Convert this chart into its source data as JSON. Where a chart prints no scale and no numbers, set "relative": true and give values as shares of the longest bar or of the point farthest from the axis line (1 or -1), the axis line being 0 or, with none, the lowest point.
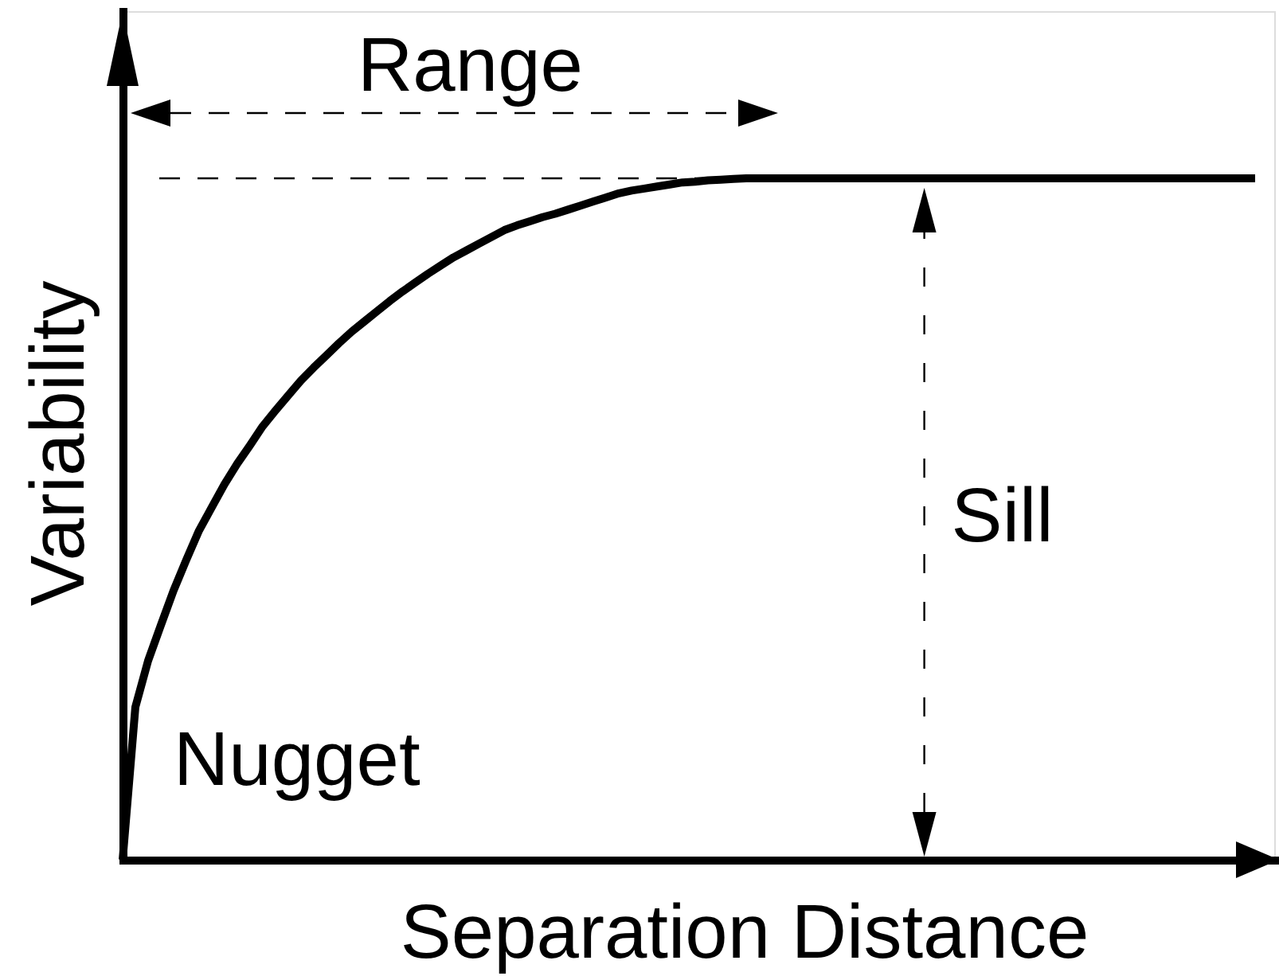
{
  "chart_data": {
    "type": "line",
    "xlabel": "Separation Distance",
    "ylabel": "Variability",
    "categories": [
      null,
      null,
      null,
      null,
      null,
      null,
      null,
      null,
      null,
      null,
      null,
      null,
      null,
      null,
      null,
      null,
      null,
      null,
      null,
      null,
      null,
      null,
      null,
      null,
      null,
      null,
      null,
      null,
      null,
      null,
      null,
      null,
      null,
      null,
      null,
      null,
      null,
      null,
      null,
      null,
      null,
      null,
      null,
      null,
      null,
      null,
      null,
      null,
      null,
      null,
      null,
      null,
      null,
      null,
      null,
      null,
      null,
      null,
      null,
      null,
      null,
      null,
      null,
      null,
      null,
      null,
      null,
      null,
      null,
      null,
      null,
      null,
      null,
      null,
      null,
      null,
      null,
      null,
      null,
      null,
      null,
      null,
      null,
      null,
      null,
      null,
      null,
      null,
      null,
      null
    ],
    "values": [
      0,
      0.224,
      0.292,
      0.344,
      0.395,
      0.44,
      0.483,
      0.517,
      0.551,
      0.581,
      0.608,
      0.636,
      0.659,
      0.681,
      0.703,
      0.722,
      0.74,
      0.758,
      0.775,
      0.79,
      0.805,
      0.82,
      0.834,
      0.847,
      0.86,
      0.872,
      0.884,
      0.894,
      0.904,
      0.914,
      0.924,
      0.931,
      0.937,
      0.943,
      0.948,
      0.954,
      0.96,
      0.966,
      0.972,
      0.978,
      0.982,
      0.985,
      0.988,
      0.991,
      0.994,
      0.995,
      0.997,
      0.998,
      0.999,
      1,
      1,
      1,
      1,
      1,
      1,
      1,
      1,
      1,
      1,
      1,
      1,
      1,
      1,
      1,
      1,
      1,
      1,
      1,
      1,
      1,
      1,
      1,
      1,
      1,
      1,
      1,
      1,
      1,
      1,
      1,
      1,
      1,
      1,
      1,
      1,
      1,
      1,
      1,
      1,
      1
    ],
    "color": "#000000",
    "relative": true,
    "tick_labels": false,
    "grid": false,
    "ref_lines": [
      {
        "axis": "y",
        "value": 1,
        "color": "#000000",
        "line_style": "dashed"
      }
    ],
    "annotations": [
      "Range",
      "Sill",
      "Nugget"
    ]
  }
}
